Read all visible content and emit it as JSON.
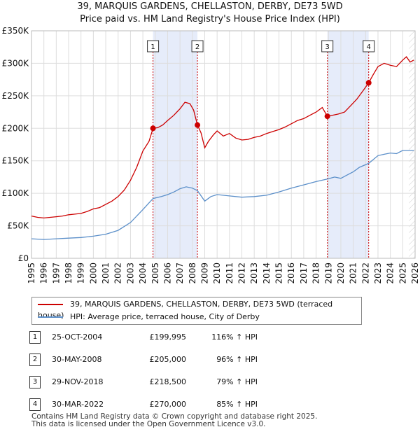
{
  "title_line1": "39, MARQUIS GARDENS, CHELLASTON, DERBY, DE73 5WD",
  "title_line2": "Price paid vs. HM Land Registry's House Price Index (HPI)",
  "legend": {
    "property": "39, MARQUIS GARDENS, CHELLASTON, DERBY, DE73 5WD (terraced house)",
    "hpi": "HPI: Average price, terraced house, City of Derby"
  },
  "sales": [
    {
      "num": "1",
      "date": "25-OCT-2004",
      "price": "£199,995",
      "hpi": "116% ↑ HPI"
    },
    {
      "num": "2",
      "date": "30-MAY-2008",
      "price": "£205,000",
      "hpi": "96% ↑ HPI"
    },
    {
      "num": "3",
      "date": "29-NOV-2018",
      "price": "£218,500",
      "hpi": "79% ↑ HPI"
    },
    {
      "num": "4",
      "date": "30-MAR-2022",
      "price": "£270,000",
      "hpi": "85% ↑ HPI"
    }
  ],
  "footer": {
    "line1": "Contains HM Land Registry data © Crown copyright and database right 2025.",
    "line2": "This data is licensed under the Open Government Licence v3.0."
  },
  "colors": {
    "property": "#cc0000",
    "hpi": "#5b8fc9",
    "shade": "#e6ecfa",
    "grid": "#dddddd"
  },
  "chart_data": {
    "type": "line",
    "title": "39, MARQUIS GARDENS, CHELLASTON, DERBY, DE73 5WD — Price paid vs. HM Land Registry's House Price Index (HPI)",
    "xlabel": "",
    "ylabel": "",
    "xlim": [
      1995,
      2026
    ],
    "ylim": [
      0,
      350000
    ],
    "x_ticks": [
      1995,
      1996,
      1997,
      1998,
      1999,
      2000,
      2001,
      2002,
      2003,
      2004,
      2005,
      2006,
      2007,
      2008,
      2009,
      2010,
      2011,
      2012,
      2013,
      2014,
      2015,
      2016,
      2017,
      2018,
      2019,
      2020,
      2021,
      2022,
      2023,
      2024,
      2025,
      2026
    ],
    "y_ticks": [
      {
        "value": 0,
        "label": "£0"
      },
      {
        "value": 50000,
        "label": "£50K"
      },
      {
        "value": 100000,
        "label": "£100K"
      },
      {
        "value": 150000,
        "label": "£150K"
      },
      {
        "value": 200000,
        "label": "£200K"
      },
      {
        "value": 250000,
        "label": "£250K"
      },
      {
        "value": 300000,
        "label": "£300K"
      },
      {
        "value": 350000,
        "label": "£350K"
      }
    ],
    "grid": true,
    "shaded_ranges": [
      [
        2004.82,
        2008.41
      ],
      [
        2018.91,
        2022.25
      ]
    ],
    "series": [
      {
        "name": "39, MARQUIS GARDENS, CHELLASTON, DERBY, DE73 5WD (terraced house)",
        "color": "#cc0000",
        "points": [
          [
            1995.0,
            65000
          ],
          [
            1995.5,
            63000
          ],
          [
            1996.0,
            62000
          ],
          [
            1996.5,
            63000
          ],
          [
            1997.0,
            64000
          ],
          [
            1997.5,
            65000
          ],
          [
            1998.0,
            67000
          ],
          [
            1998.5,
            68000
          ],
          [
            1999.0,
            69000
          ],
          [
            1999.5,
            72000
          ],
          [
            2000.0,
            76000
          ],
          [
            2000.5,
            78000
          ],
          [
            2001.0,
            83000
          ],
          [
            2001.5,
            88000
          ],
          [
            2002.0,
            95000
          ],
          [
            2002.5,
            105000
          ],
          [
            2003.0,
            120000
          ],
          [
            2003.5,
            140000
          ],
          [
            2004.0,
            165000
          ],
          [
            2004.5,
            180000
          ],
          [
            2004.82,
            199995
          ],
          [
            2005.2,
            201000
          ],
          [
            2005.6,
            205000
          ],
          [
            2006.0,
            212000
          ],
          [
            2006.5,
            220000
          ],
          [
            2007.0,
            230000
          ],
          [
            2007.4,
            240000
          ],
          [
            2007.8,
            238000
          ],
          [
            2008.1,
            228000
          ],
          [
            2008.41,
            205000
          ],
          [
            2008.7,
            193000
          ],
          [
            2009.0,
            170000
          ],
          [
            2009.3,
            180000
          ],
          [
            2009.7,
            190000
          ],
          [
            2010.0,
            196000
          ],
          [
            2010.5,
            188000
          ],
          [
            2011.0,
            192000
          ],
          [
            2011.5,
            185000
          ],
          [
            2012.0,
            182000
          ],
          [
            2012.5,
            183000
          ],
          [
            2013.0,
            186000
          ],
          [
            2013.5,
            188000
          ],
          [
            2014.0,
            192000
          ],
          [
            2014.5,
            195000
          ],
          [
            2015.0,
            198000
          ],
          [
            2015.5,
            202000
          ],
          [
            2016.0,
            207000
          ],
          [
            2016.5,
            212000
          ],
          [
            2017.0,
            215000
          ],
          [
            2017.5,
            220000
          ],
          [
            2018.0,
            225000
          ],
          [
            2018.5,
            232000
          ],
          [
            2018.91,
            218500
          ],
          [
            2019.3,
            220000
          ],
          [
            2019.8,
            222000
          ],
          [
            2020.3,
            225000
          ],
          [
            2020.8,
            235000
          ],
          [
            2021.3,
            245000
          ],
          [
            2021.8,
            258000
          ],
          [
            2022.25,
            270000
          ],
          [
            2022.6,
            282000
          ],
          [
            2023.0,
            295000
          ],
          [
            2023.5,
            300000
          ],
          [
            2024.0,
            297000
          ],
          [
            2024.5,
            295000
          ],
          [
            2025.0,
            305000
          ],
          [
            2025.3,
            310000
          ],
          [
            2025.6,
            302000
          ],
          [
            2025.9,
            305000
          ]
        ]
      },
      {
        "name": "HPI: Average price, terraced house, City of Derby",
        "color": "#5b8fc9",
        "points": [
          [
            1995.0,
            30000
          ],
          [
            1996.0,
            29000
          ],
          [
            1997.0,
            30000
          ],
          [
            1998.0,
            31000
          ],
          [
            1999.0,
            32000
          ],
          [
            2000.0,
            34000
          ],
          [
            2001.0,
            37000
          ],
          [
            2002.0,
            43000
          ],
          [
            2003.0,
            55000
          ],
          [
            2004.0,
            75000
          ],
          [
            2004.82,
            92000
          ],
          [
            2005.5,
            95000
          ],
          [
            2006.0,
            98000
          ],
          [
            2006.5,
            102000
          ],
          [
            2007.0,
            107000
          ],
          [
            2007.5,
            110000
          ],
          [
            2008.0,
            108000
          ],
          [
            2008.41,
            104000
          ],
          [
            2009.0,
            88000
          ],
          [
            2009.5,
            95000
          ],
          [
            2010.0,
            98000
          ],
          [
            2011.0,
            96000
          ],
          [
            2012.0,
            94000
          ],
          [
            2013.0,
            95000
          ],
          [
            2014.0,
            97000
          ],
          [
            2015.0,
            102000
          ],
          [
            2016.0,
            108000
          ],
          [
            2017.0,
            113000
          ],
          [
            2018.0,
            118000
          ],
          [
            2018.91,
            122000
          ],
          [
            2019.5,
            125000
          ],
          [
            2020.0,
            123000
          ],
          [
            2020.5,
            128000
          ],
          [
            2021.0,
            133000
          ],
          [
            2021.5,
            140000
          ],
          [
            2022.25,
            146000
          ],
          [
            2023.0,
            158000
          ],
          [
            2023.5,
            160000
          ],
          [
            2024.0,
            162000
          ],
          [
            2024.5,
            161000
          ],
          [
            2025.0,
            166000
          ],
          [
            2025.9,
            166000
          ]
        ]
      }
    ],
    "sale_markers": [
      {
        "label": "1",
        "x": 2004.82,
        "y": 199995
      },
      {
        "label": "2",
        "x": 2008.41,
        "y": 205000
      },
      {
        "label": "3",
        "x": 2018.91,
        "y": 218500
      },
      {
        "label": "4",
        "x": 2022.25,
        "y": 270000
      }
    ]
  }
}
